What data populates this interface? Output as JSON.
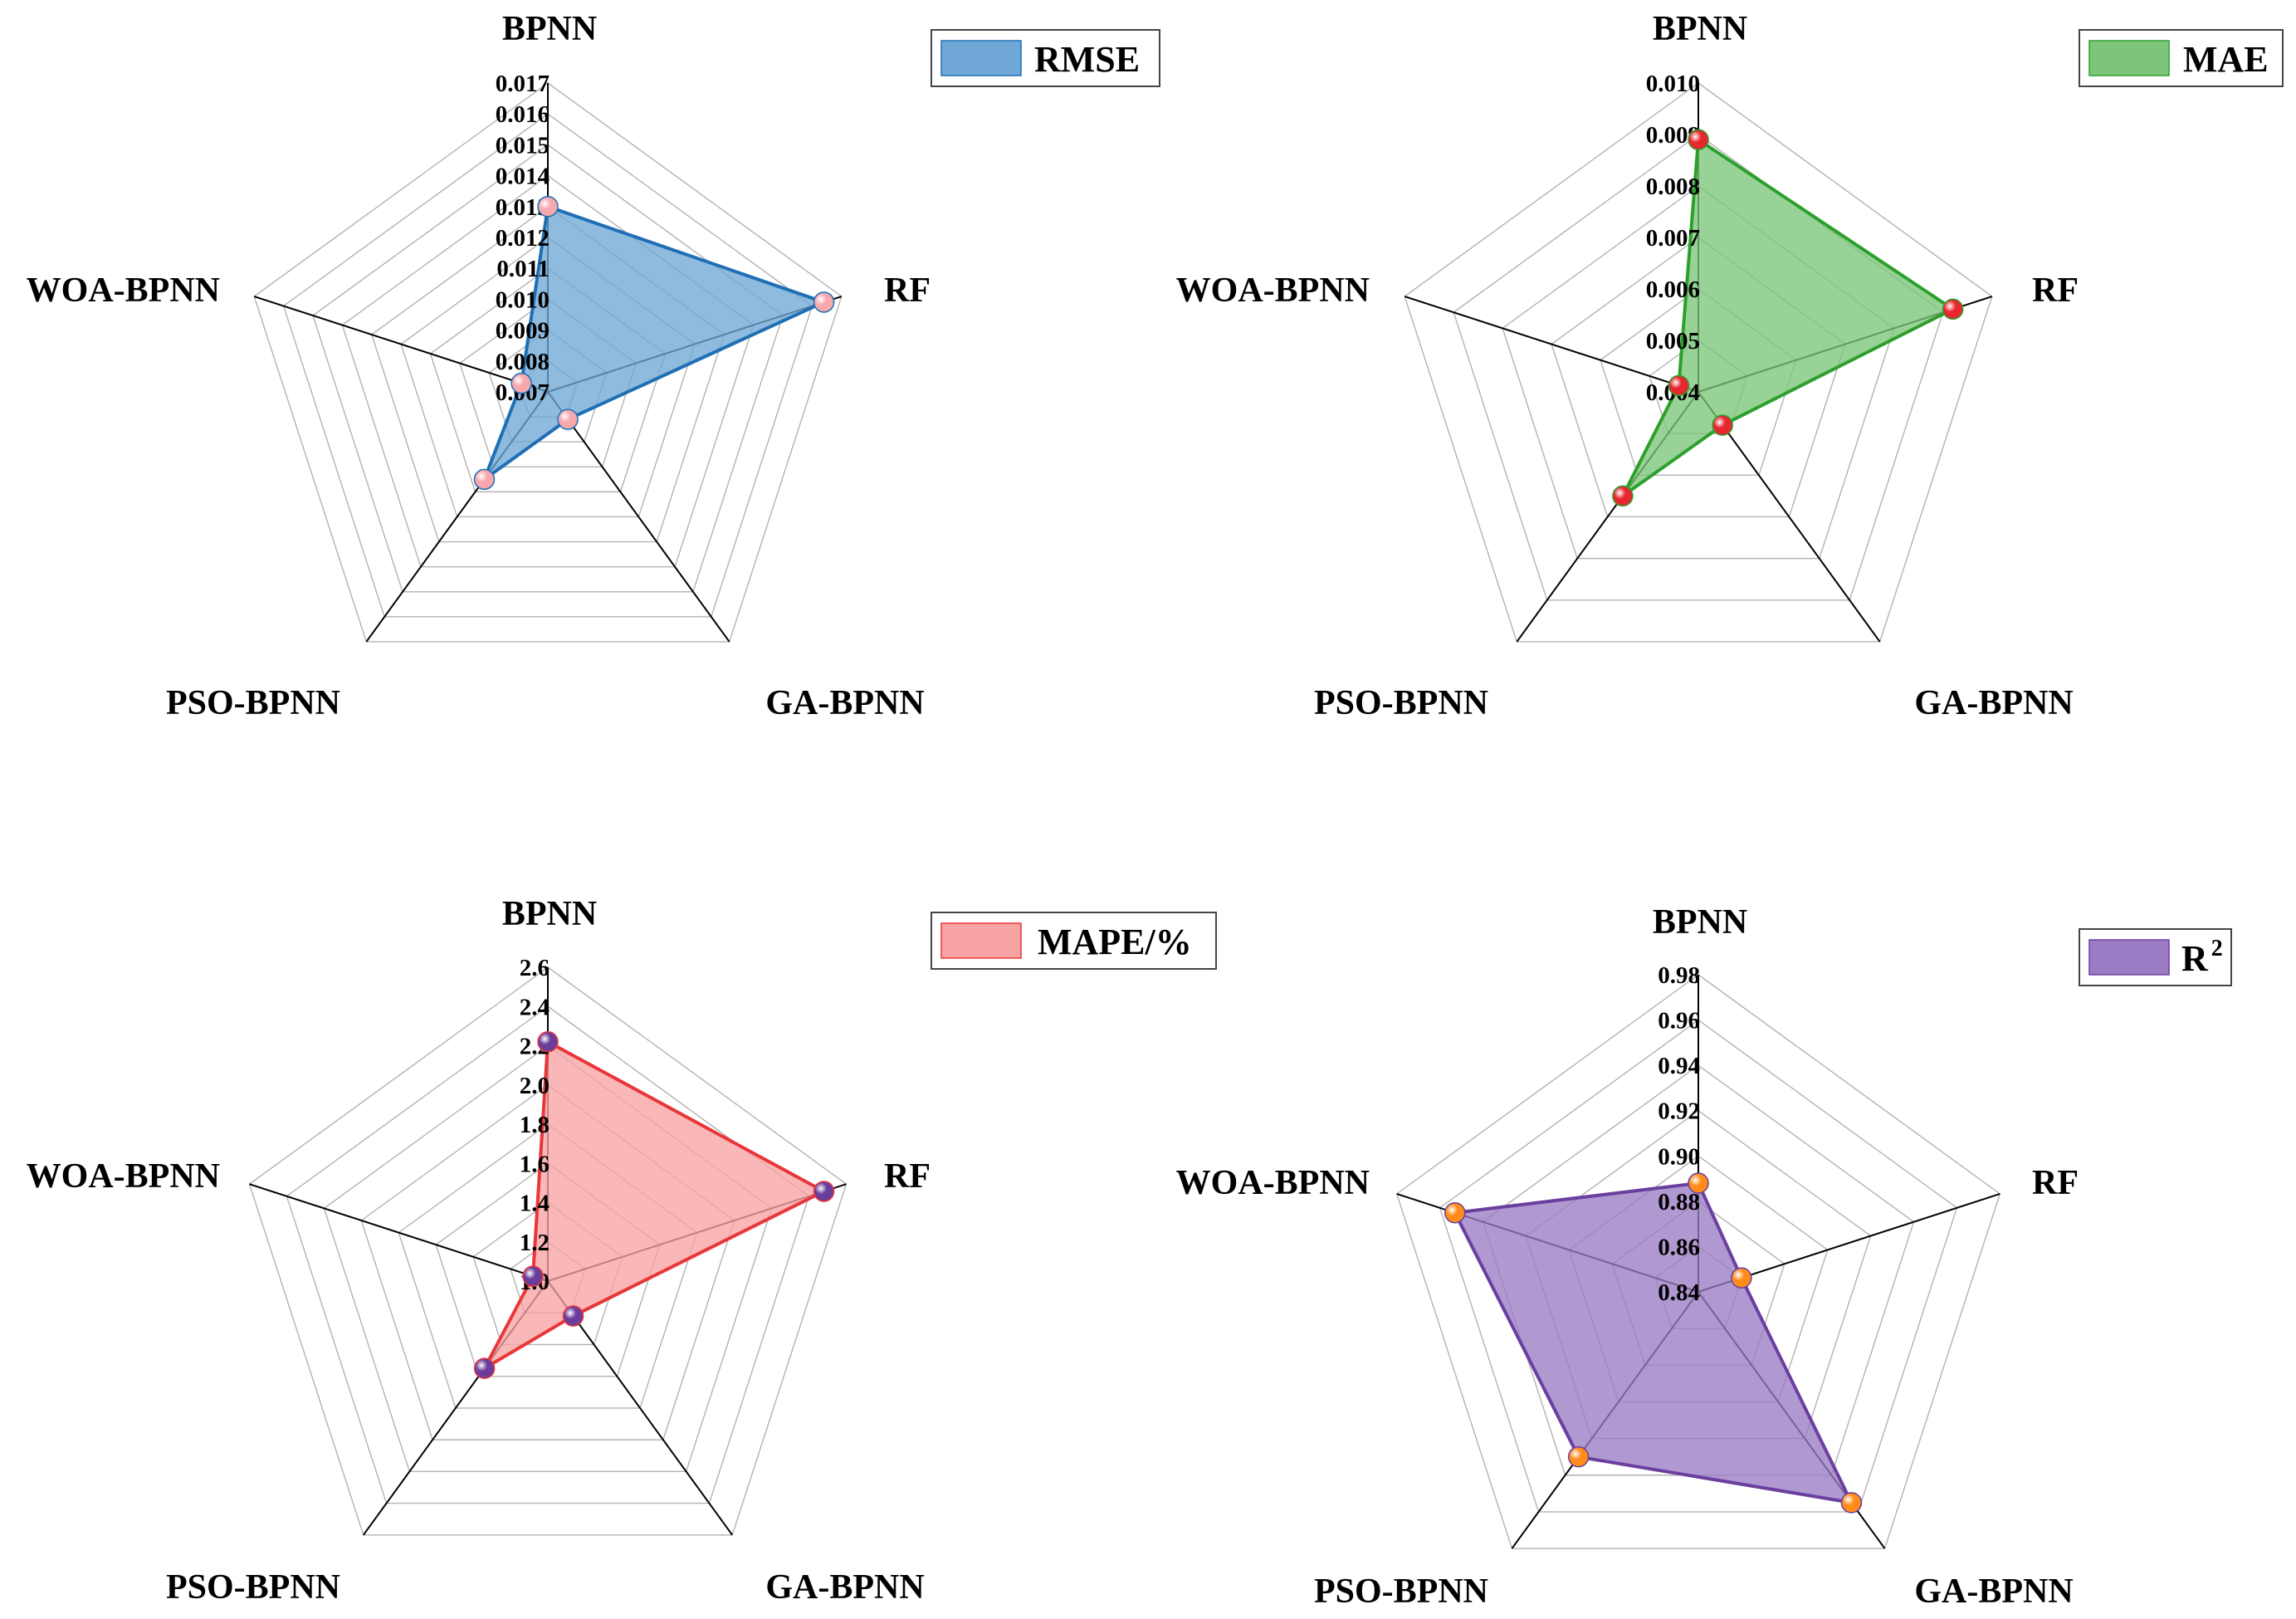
{
  "chart_data": [
    {
      "type": "radar",
      "metric": "RMSE",
      "legend_label": "RMSE",
      "categories": [
        "BPNN",
        "RF",
        "GA-BPNN",
        "PSO-BPNN",
        "WOA-BPNN"
      ],
      "values": [
        0.013,
        0.0164,
        0.0081,
        0.0105,
        0.0079
      ],
      "rmin": 0.007,
      "rmax": 0.017,
      "ticks": [
        "0.007",
        "0.008",
        "0.009",
        "0.010",
        "0.011",
        "0.012",
        "0.013",
        "0.014",
        "0.015",
        "0.016",
        "0.017"
      ],
      "fill_color": "#6fa8d6",
      "line_color": "#1f6fb5",
      "marker_color": "#f7a8ad",
      "legend_position": "top-right"
    },
    {
      "type": "radar",
      "metric": "MAE",
      "legend_label": "MAE",
      "categories": [
        "BPNN",
        "RF",
        "GA-BPNN",
        "PSO-BPNN",
        "WOA-BPNN"
      ],
      "values": [
        0.0089,
        0.0092,
        0.0048,
        0.0065,
        0.0044
      ],
      "rmin": 0.004,
      "rmax": 0.01,
      "ticks": [
        "0.004",
        "0.005",
        "0.006",
        "0.007",
        "0.008",
        "0.009",
        "0.010"
      ],
      "fill_color": "#7cc57a",
      "line_color": "#2ca02c",
      "marker_color": "#e8262e",
      "legend_position": "top-right"
    },
    {
      "type": "radar",
      "metric": "MAPE/%",
      "legend_label": "MAPE/%",
      "categories": [
        "BPNN",
        "RF",
        "GA-BPNN",
        "PSO-BPNN",
        "WOA-BPNN"
      ],
      "values": [
        2.22,
        2.48,
        1.22,
        1.55,
        1.08
      ],
      "rmin": 1.0,
      "rmax": 2.6,
      "ticks": [
        "1.0",
        "1.2",
        "1.4",
        "1.6",
        "1.8",
        "2.0",
        "2.2",
        "2.4",
        "2.6"
      ],
      "fill_color": "#f7a3a3",
      "line_color": "#e8363a",
      "marker_color": "#6a3d9a",
      "legend_position": "top-right"
    },
    {
      "type": "radar",
      "metric": "R2",
      "legend_label": "R",
      "legend_superscript": "2",
      "categories": [
        "BPNN",
        "RF",
        "GA-BPNN",
        "PSO-BPNN",
        "WOA-BPNN"
      ],
      "values": [
        0.888,
        0.86,
        0.955,
        0.93,
        0.953
      ],
      "rmin": 0.84,
      "rmax": 0.98,
      "ticks": [
        "0.84",
        "0.86",
        "0.88",
        "0.90",
        "0.92",
        "0.94",
        "0.96",
        "0.98"
      ],
      "fill_color": "#9a7cc4",
      "line_color": "#6a3fa0",
      "marker_color": "#ff8c1a",
      "legend_position": "top-right"
    }
  ]
}
